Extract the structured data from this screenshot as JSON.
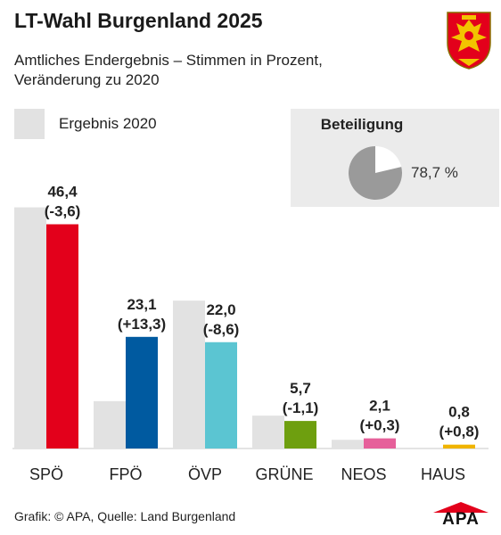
{
  "header": {
    "title": "LT-Wahl Burgenland 2025",
    "subtitle": "Amtliches Endergebnis – Stimmen in Prozent, Veränderung zu 2020"
  },
  "legend": {
    "label": "Ergebnis 2020",
    "color": "#e2e2e2"
  },
  "turnout": {
    "title": "Beteiligung",
    "value": 78.7,
    "value_label": "78,7 %",
    "color": "#9a9a9a"
  },
  "chart_data": {
    "type": "bar",
    "categories": [
      "SPÖ",
      "FPÖ",
      "ÖVP",
      "GRÜNE",
      "NEOS",
      "HAUS"
    ],
    "series": [
      {
        "name": "Ergebnis 2020",
        "values": [
          49.9,
          9.8,
          30.6,
          6.8,
          1.8,
          0
        ],
        "color": "#e2e2e2"
      },
      {
        "values": [
          46.4,
          23.1,
          22.0,
          5.7,
          2.1,
          0.8
        ],
        "colors": [
          "#e3001b",
          "#005aa0",
          "#5bc5d2",
          "#6e9f0f",
          "#e6609a",
          "#f0b400"
        ]
      }
    ],
    "value_labels": [
      "46,4",
      "23,1",
      "22,0",
      "5,7",
      "2,1",
      "0,8"
    ],
    "change_labels": [
      "(-3,6)",
      "(+13,3)",
      "(-8,6)",
      "(-1,1)",
      "(+0,3)",
      "(+0,8)"
    ],
    "ylim": [
      0,
      50
    ]
  },
  "footer": {
    "source": "Grafik: © APA, Quelle: Land Burgenland",
    "logo_text": "APA"
  }
}
